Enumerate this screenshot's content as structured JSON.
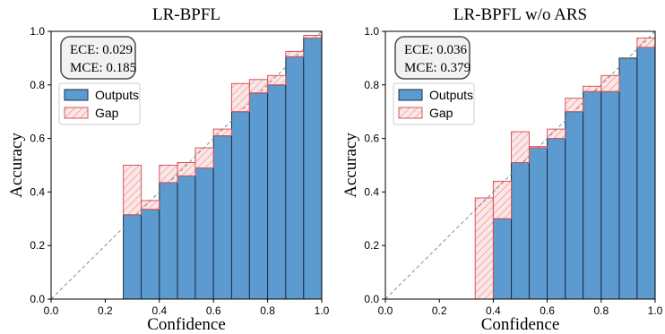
{
  "chart_data": [
    {
      "type": "bar",
      "title": "LR-BPFL",
      "xlabel": "Confidence",
      "ylabel": "Accuracy",
      "xlim": [
        0.0,
        1.0
      ],
      "ylim": [
        0.0,
        1.0
      ],
      "x_ticks": [
        "0.0",
        "0.2",
        "0.4",
        "0.6",
        "0.8",
        "1.0"
      ],
      "y_ticks": [
        "0.0",
        "0.2",
        "0.4",
        "0.6",
        "0.8",
        "1.0"
      ],
      "grid": false,
      "metrics": {
        "ece": "ECE:  0.029",
        "mce": "MCE: 0.185"
      },
      "legend": {
        "placement": "upper-left",
        "outputs": "Outputs",
        "gap": "Gap"
      },
      "colors": {
        "outputs": "#5b9bd0",
        "outputs_edge": "#1c2f45",
        "gap_fill": "#f9c9c9",
        "gap_edge": "#d9545c",
        "hatch": "#e8838a",
        "diagonal": "#8a8a8a"
      },
      "bins": [
        {
          "x0": 0.267,
          "x1": 0.333,
          "accuracy": 0.315,
          "gap_top": 0.5
        },
        {
          "x0": 0.333,
          "x1": 0.4,
          "accuracy": 0.335,
          "gap_top": 0.368
        },
        {
          "x0": 0.4,
          "x1": 0.467,
          "accuracy": 0.435,
          "gap_top": 0.5
        },
        {
          "x0": 0.467,
          "x1": 0.533,
          "accuracy": 0.46,
          "gap_top": 0.51
        },
        {
          "x0": 0.533,
          "x1": 0.6,
          "accuracy": 0.49,
          "gap_top": 0.565
        },
        {
          "x0": 0.6,
          "x1": 0.667,
          "accuracy": 0.61,
          "gap_top": 0.635
        },
        {
          "x0": 0.667,
          "x1": 0.733,
          "accuracy": 0.7,
          "gap_top": 0.805
        },
        {
          "x0": 0.733,
          "x1": 0.8,
          "accuracy": 0.77,
          "gap_top": 0.82
        },
        {
          "x0": 0.8,
          "x1": 0.867,
          "accuracy": 0.8,
          "gap_top": 0.835
        },
        {
          "x0": 0.867,
          "x1": 0.933,
          "accuracy": 0.905,
          "gap_top": 0.925
        },
        {
          "x0": 0.933,
          "x1": 1.0,
          "accuracy": 0.975,
          "gap_top": 0.985
        }
      ]
    },
    {
      "type": "bar",
      "title": "LR-BPFL w/o ARS",
      "xlabel": "Confidence",
      "ylabel": "Accuracy",
      "xlim": [
        0.0,
        1.0
      ],
      "ylim": [
        0.0,
        1.0
      ],
      "x_ticks": [
        "0.0",
        "0.2",
        "0.4",
        "0.6",
        "0.8",
        "1.0"
      ],
      "y_ticks": [
        "0.0",
        "0.2",
        "0.4",
        "0.6",
        "0.8",
        "1.0"
      ],
      "grid": false,
      "metrics": {
        "ece": "ECE:  0.036",
        "mce": "MCE: 0.379"
      },
      "legend": {
        "placement": "upper-left",
        "outputs": "Outputs",
        "gap": "Gap"
      },
      "colors": {
        "outputs": "#5b9bd0",
        "outputs_edge": "#1c2f45",
        "gap_fill": "#f9c9c9",
        "gap_edge": "#d9545c",
        "hatch": "#e8838a",
        "diagonal": "#8a8a8a"
      },
      "bins": [
        {
          "x0": 0.333,
          "x1": 0.4,
          "accuracy": 0.0,
          "gap_top": 0.378
        },
        {
          "x0": 0.4,
          "x1": 0.467,
          "accuracy": 0.3,
          "gap_top": 0.44
        },
        {
          "x0": 0.467,
          "x1": 0.533,
          "accuracy": 0.51,
          "gap_top": 0.625
        },
        {
          "x0": 0.533,
          "x1": 0.6,
          "accuracy": 0.565,
          "gap_top": 0.57
        },
        {
          "x0": 0.6,
          "x1": 0.667,
          "accuracy": 0.6,
          "gap_top": 0.635
        },
        {
          "x0": 0.667,
          "x1": 0.733,
          "accuracy": 0.7,
          "gap_top": 0.75
        },
        {
          "x0": 0.733,
          "x1": 0.8,
          "accuracy": 0.775,
          "gap_top": 0.795
        },
        {
          "x0": 0.8,
          "x1": 0.867,
          "accuracy": 0.775,
          "gap_top": 0.835
        },
        {
          "x0": 0.867,
          "x1": 0.933,
          "accuracy": 0.9,
          "gap_top": 0.9
        },
        {
          "x0": 0.933,
          "x1": 1.0,
          "accuracy": 0.94,
          "gap_top": 0.975
        }
      ]
    }
  ]
}
